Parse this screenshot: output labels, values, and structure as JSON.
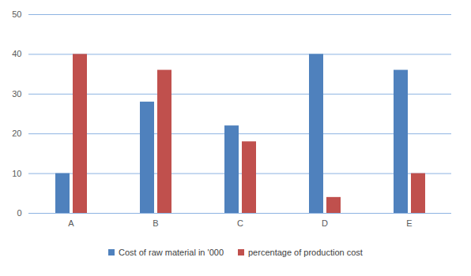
{
  "chart_data": {
    "type": "bar",
    "categories": [
      "A",
      "B",
      "C",
      "D",
      "E"
    ],
    "series": [
      {
        "name": "Cost of raw material in '000",
        "color": "#4f81bd",
        "values": [
          10,
          28,
          22,
          40,
          36
        ]
      },
      {
        "name": "percentage of production cost",
        "color": "#c0504d",
        "values": [
          40,
          36,
          18,
          4,
          10
        ]
      }
    ],
    "ylim": [
      0,
      50
    ],
    "yticks": [
      0,
      10,
      20,
      30,
      40,
      50
    ],
    "grid": true,
    "legend": "bottom"
  }
}
